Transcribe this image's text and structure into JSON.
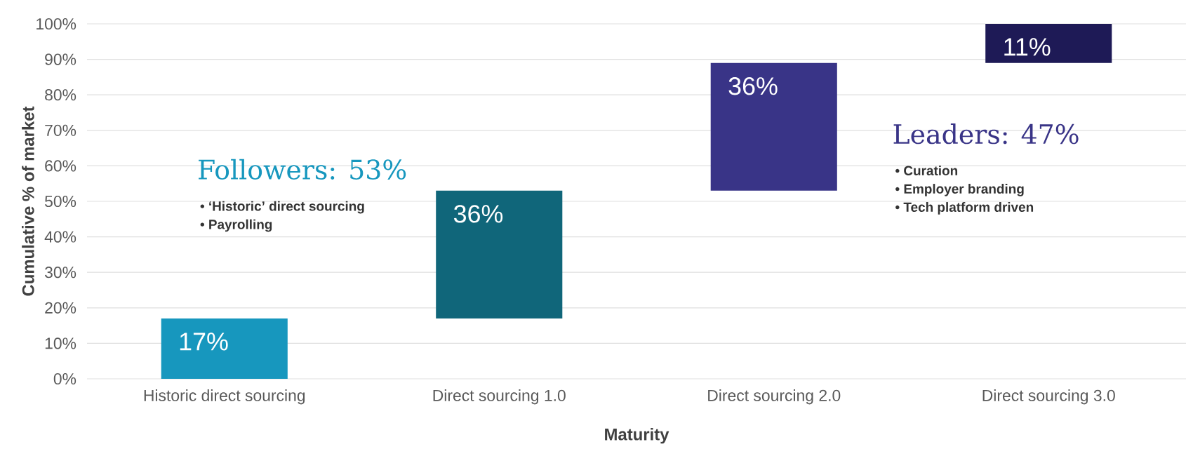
{
  "chart_data": {
    "type": "bar",
    "xlabel": "Maturity",
    "ylabel": "Cumulative % of market",
    "categories": [
      "Historic direct sourcing",
      "Direct sourcing 1.0",
      "Direct sourcing 2.0",
      "Direct sourcing 3.0"
    ],
    "values": [
      17,
      36,
      36,
      11
    ],
    "base": [
      0,
      17,
      53,
      89
    ],
    "colors": [
      "#1797be",
      "#10667a",
      "#393487",
      "#1e1a56"
    ],
    "value_labels": [
      "17%",
      "36%",
      "36%",
      "11%"
    ],
    "ylim": [
      0,
      100
    ],
    "yticks": [
      {
        "value": 0,
        "label": "0%"
      },
      {
        "value": 10,
        "label": "10%"
      },
      {
        "value": 20,
        "label": "20%"
      },
      {
        "value": 30,
        "label": "30%"
      },
      {
        "value": 40,
        "label": "40%"
      },
      {
        "value": 50,
        "label": "50%"
      },
      {
        "value": 60,
        "label": "60%"
      },
      {
        "value": 70,
        "label": "70%"
      },
      {
        "value": 80,
        "label": "80%"
      },
      {
        "value": 90,
        "label": "90%"
      },
      {
        "value": 100,
        "label": "100%"
      }
    ],
    "grid": "y",
    "annotations": [
      "Followers: 53%",
      "• ‘Historic’ direct sourcing",
      "• Payrolling",
      "Leaders: 47%",
      "• Curation",
      "• Employer branding",
      "• Tech platform driven"
    ]
  }
}
